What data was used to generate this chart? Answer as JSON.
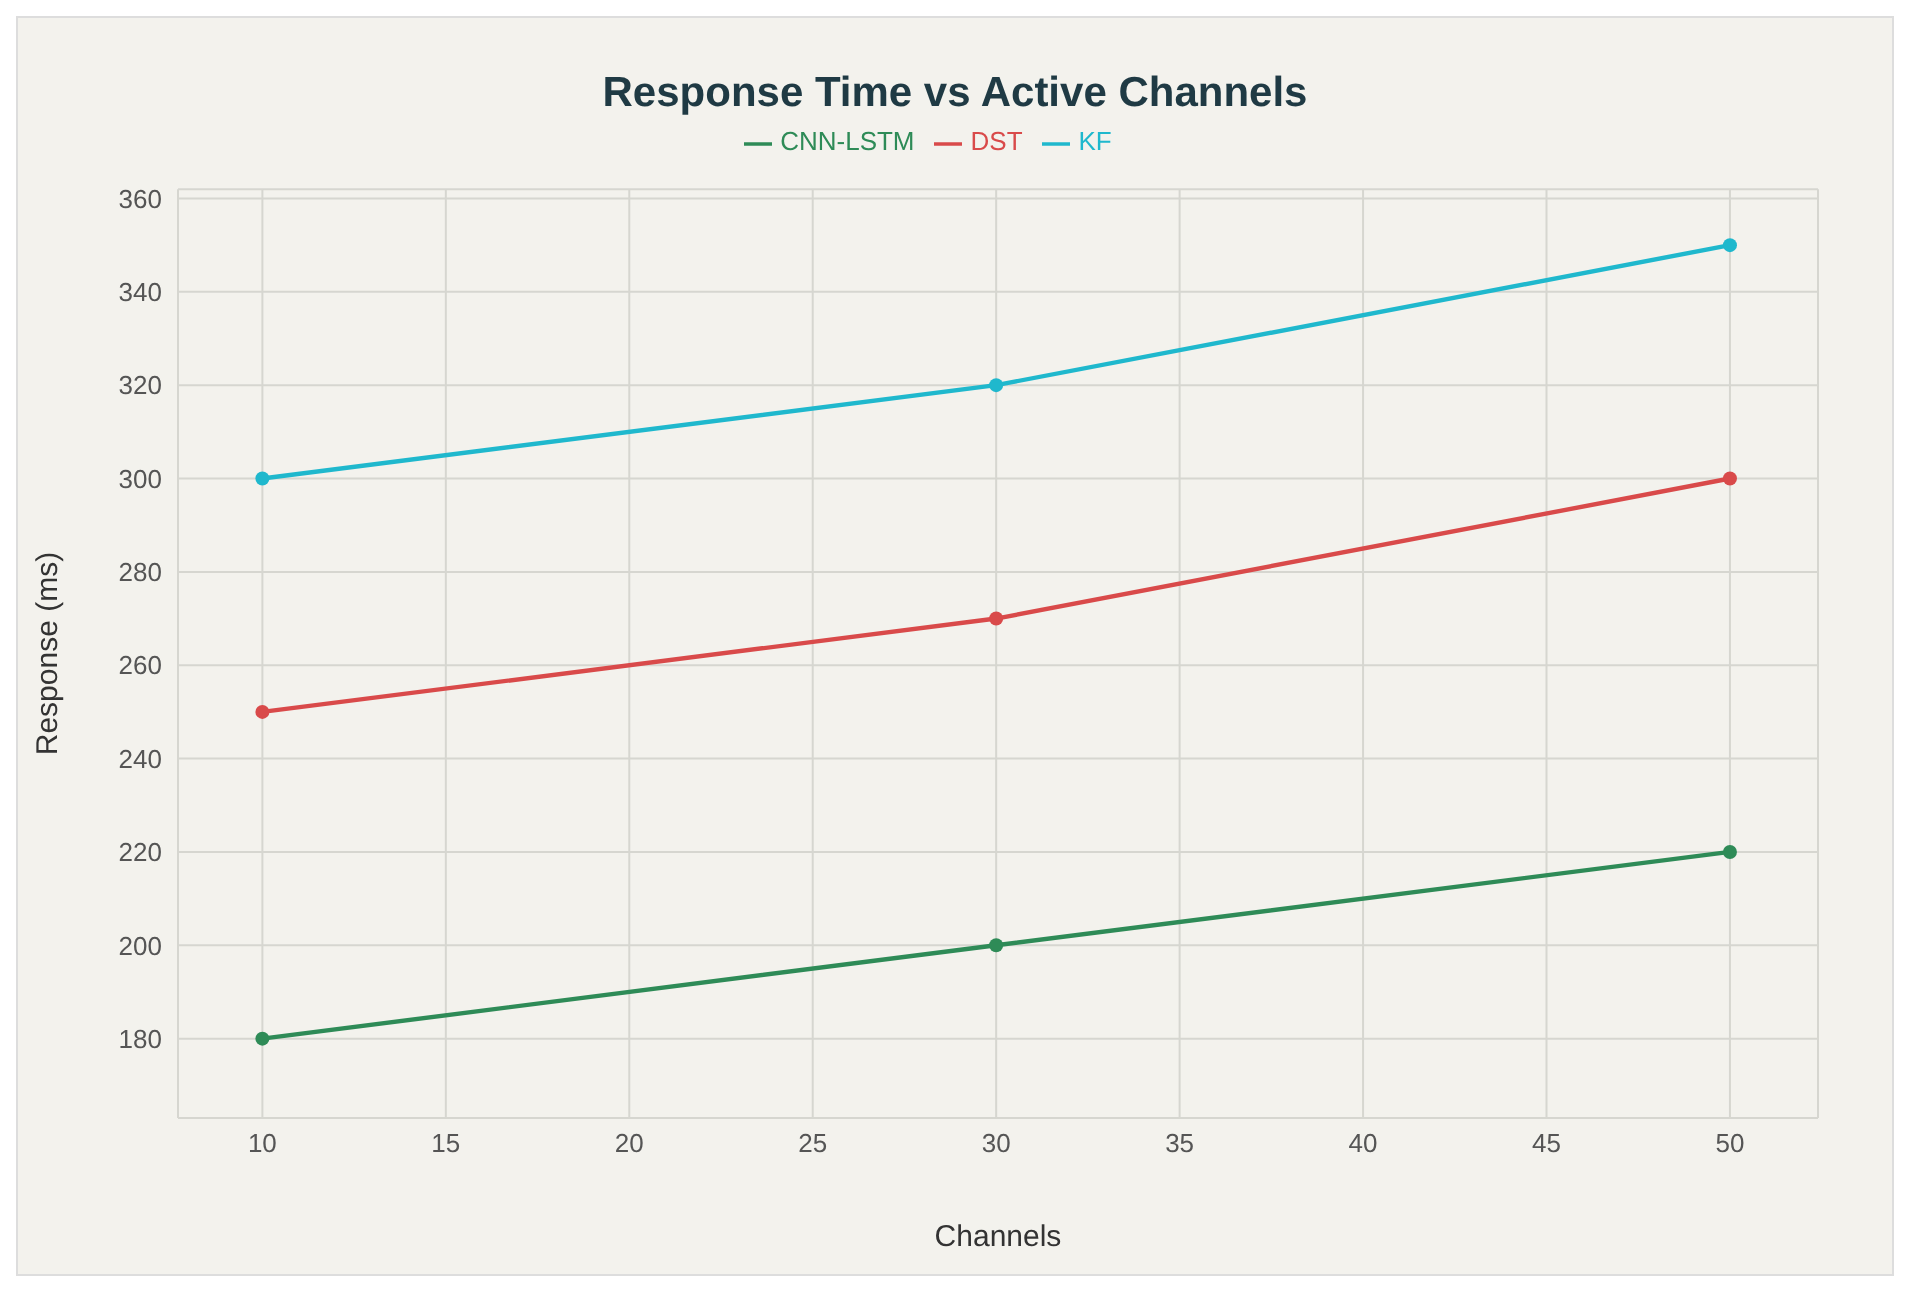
{
  "chart_data": {
    "type": "line",
    "title": "Response Time vs Active Channels",
    "xlabel": "Channels",
    "ylabel": "Response (ms)",
    "x": [
      10,
      30,
      50
    ],
    "series": [
      {
        "name": "KF",
        "color": "#1fb8cd",
        "values": [
          300,
          320,
          350
        ]
      },
      {
        "name": "DST",
        "color": "#d94a4a",
        "values": [
          250,
          270,
          300
        ]
      },
      {
        "name": "CNN-LSTM",
        "color": "#2e8b57",
        "values": [
          180,
          200,
          220
        ]
      }
    ],
    "xlim": [
      7.7,
      52.4
    ],
    "xticks": [
      10,
      15,
      20,
      25,
      30,
      35,
      40,
      45,
      50
    ],
    "ylim": [
      163,
      362
    ],
    "yticks": [
      180,
      200,
      220,
      240,
      260,
      280,
      300,
      320,
      340,
      360
    ],
    "grid": true,
    "legend": "top",
    "marker": "circle",
    "line_style": "solid"
  }
}
